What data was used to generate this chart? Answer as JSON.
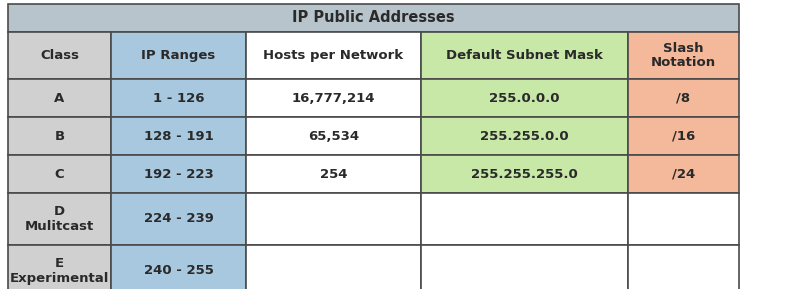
{
  "title": "IP Public Addresses",
  "title_bg": "#b8c4cc",
  "col0_bg": "#d0d0d0",
  "col1_bg": "#a8c8e0",
  "col2_bg": "#ffffff",
  "col3_bg": "#c8e8a8",
  "col4_bg": "#f4b89a",
  "header_row": [
    "Class",
    "IP Ranges",
    "Hosts per Network",
    "Default Subnet Mask",
    "Slash\nNotation"
  ],
  "rows": [
    [
      "A",
      "1 - 126",
      "16,777,214",
      "255.0.0.0",
      "/8"
    ],
    [
      "B",
      "128 - 191",
      "65,534",
      "255.255.0.0",
      "/16"
    ],
    [
      "C",
      "192 - 223",
      "254",
      "255.255.255.0",
      "/24"
    ],
    [
      "D\nMulitcast",
      "224 - 239",
      "",
      "",
      ""
    ],
    [
      "E\nExperimental",
      "240 - 255",
      "",
      "",
      ""
    ]
  ],
  "text_color": "#2a2a2a",
  "border_color": "#4a4a4a",
  "font_size": 9.5,
  "title_font_size": 10.5
}
